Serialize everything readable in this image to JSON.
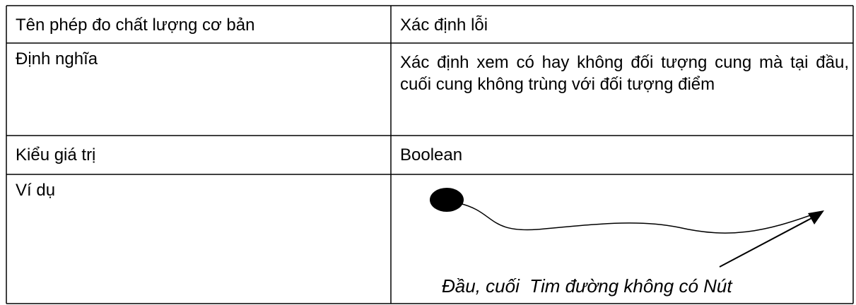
{
  "table": {
    "rows": [
      [
        "Tên phép đo chất lượng cơ bản",
        "Xác định lỗi"
      ],
      [
        "Định nghĩa",
        "Xác định xem có hay không đối tượng cung mà tại đầu, cuối cung không trùng với đối tượng điểm"
      ],
      [
        "Kiểu giá trị",
        "Boolean"
      ],
      [
        "Ví dụ"
      ]
    ],
    "example_caption": "Đầu, cuối  Tim đường không có Nút"
  }
}
